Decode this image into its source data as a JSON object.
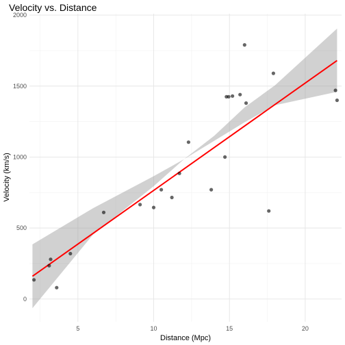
{
  "chart_data": {
    "type": "scatter",
    "title": "Velocity vs. Distance",
    "xlabel": "Distance (Mpc)",
    "ylabel": "Velocity (km/s)",
    "xlim": [
      1.8,
      22.4
    ],
    "ylim": [
      -160,
      2010
    ],
    "x_ticks": [
      5,
      10,
      15,
      20
    ],
    "y_ticks": [
      0,
      500,
      1000,
      1500,
      2000
    ],
    "x_tick_labels": [
      "5",
      "10",
      "15",
      "20"
    ],
    "y_tick_labels": [
      "0",
      "500",
      "1000",
      "1500",
      "2000"
    ],
    "grid": true,
    "points": [
      {
        "x": 2.1,
        "y": 135
      },
      {
        "x": 3.1,
        "y": 235
      },
      {
        "x": 3.2,
        "y": 280
      },
      {
        "x": 3.6,
        "y": 80
      },
      {
        "x": 4.5,
        "y": 320
      },
      {
        "x": 6.7,
        "y": 610
      },
      {
        "x": 9.1,
        "y": 665
      },
      {
        "x": 10.0,
        "y": 645
      },
      {
        "x": 10.5,
        "y": 770
      },
      {
        "x": 11.2,
        "y": 715
      },
      {
        "x": 11.7,
        "y": 885
      },
      {
        "x": 12.3,
        "y": 1105
      },
      {
        "x": 13.8,
        "y": 770
      },
      {
        "x": 14.7,
        "y": 1000
      },
      {
        "x": 14.8,
        "y": 1425
      },
      {
        "x": 14.95,
        "y": 1425
      },
      {
        "x": 15.2,
        "y": 1430
      },
      {
        "x": 15.7,
        "y": 1440
      },
      {
        "x": 16.0,
        "y": 1790
      },
      {
        "x": 16.1,
        "y": 1380
      },
      {
        "x": 17.6,
        "y": 620
      },
      {
        "x": 17.9,
        "y": 1590
      },
      {
        "x": 22.0,
        "y": 1470
      },
      {
        "x": 22.1,
        "y": 1400
      }
    ],
    "fit_line": {
      "x": [
        2.0,
        22.1
      ],
      "y": [
        160,
        1680
      ]
    },
    "confidence_band": {
      "x": [
        2.0,
        6.0,
        10.0,
        12.0,
        14.0,
        16.0,
        18.0,
        22.1
      ],
      "lower": [
        -65,
        455,
        795,
        985,
        1115,
        1245,
        1365,
        1460
      ],
      "upper": [
        385,
        640,
        865,
        985,
        1150,
        1350,
        1505,
        1905
      ]
    },
    "colors": {
      "fit_line": "#ff0000",
      "band": "#999999",
      "points": "#000000"
    }
  }
}
